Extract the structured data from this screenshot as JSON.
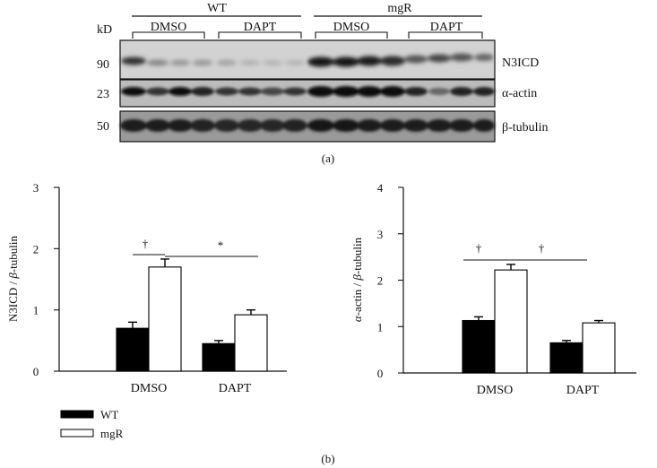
{
  "blot": {
    "kd_label": "kD",
    "groups": [
      {
        "label": "WT",
        "conditions": [
          "DMSO",
          "DAPT"
        ]
      },
      {
        "label": "mgR",
        "conditions": [
          "DMSO",
          "DAPT"
        ]
      }
    ],
    "bands": [
      {
        "kd": "90",
        "label": "N3ICD"
      },
      {
        "kd": "23",
        "label": "α-actin"
      },
      {
        "kd": "50",
        "label": "β-tubulin"
      }
    ],
    "panel_label": "(a)"
  },
  "legend": {
    "entries": [
      {
        "label": "WT",
        "color": "#000000"
      },
      {
        "label": "mgR",
        "color": "#ffffff"
      }
    ]
  },
  "panel_b_label": "(b)",
  "chart_data": [
    {
      "type": "bar",
      "categories": [
        "DMSO",
        "DAPT"
      ],
      "series": [
        {
          "name": "WT",
          "values": [
            0.7,
            0.45
          ],
          "errors": [
            0.1,
            0.05
          ],
          "color": "#000000"
        },
        {
          "name": "mgR",
          "values": [
            1.7,
            0.92
          ],
          "errors": [
            0.13,
            0.08
          ],
          "color": "#ffffff"
        }
      ],
      "ylabel_parts": [
        "N3ICD / ",
        "β",
        "-tubulin"
      ],
      "ylim": [
        0,
        3
      ],
      "yticks": [
        "0",
        "1",
        "2",
        "3"
      ],
      "annotations": [
        {
          "symbol": "†",
          "between": "WT vs mgR within DMSO"
        },
        {
          "symbol": "*",
          "between": "mgR DMSO vs DAPT"
        }
      ]
    },
    {
      "type": "bar",
      "categories": [
        "DMSO",
        "DAPT"
      ],
      "series": [
        {
          "name": "WT",
          "values": [
            1.13,
            0.65
          ],
          "errors": [
            0.08,
            0.05
          ],
          "color": "#000000"
        },
        {
          "name": "mgR",
          "values": [
            2.22,
            1.08
          ],
          "errors": [
            0.12,
            0.05
          ],
          "color": "#ffffff"
        }
      ],
      "ylabel_parts": [
        "α",
        "-actin / ",
        "β",
        "-tubulin"
      ],
      "ylim": [
        0,
        4
      ],
      "yticks": [
        "0",
        "1",
        "2",
        "3",
        "4"
      ],
      "annotations": [
        {
          "symbol": "†",
          "between": "WT vs mgR within DMSO"
        },
        {
          "symbol": "†",
          "between": "mgR DMSO vs DAPT"
        }
      ]
    }
  ]
}
